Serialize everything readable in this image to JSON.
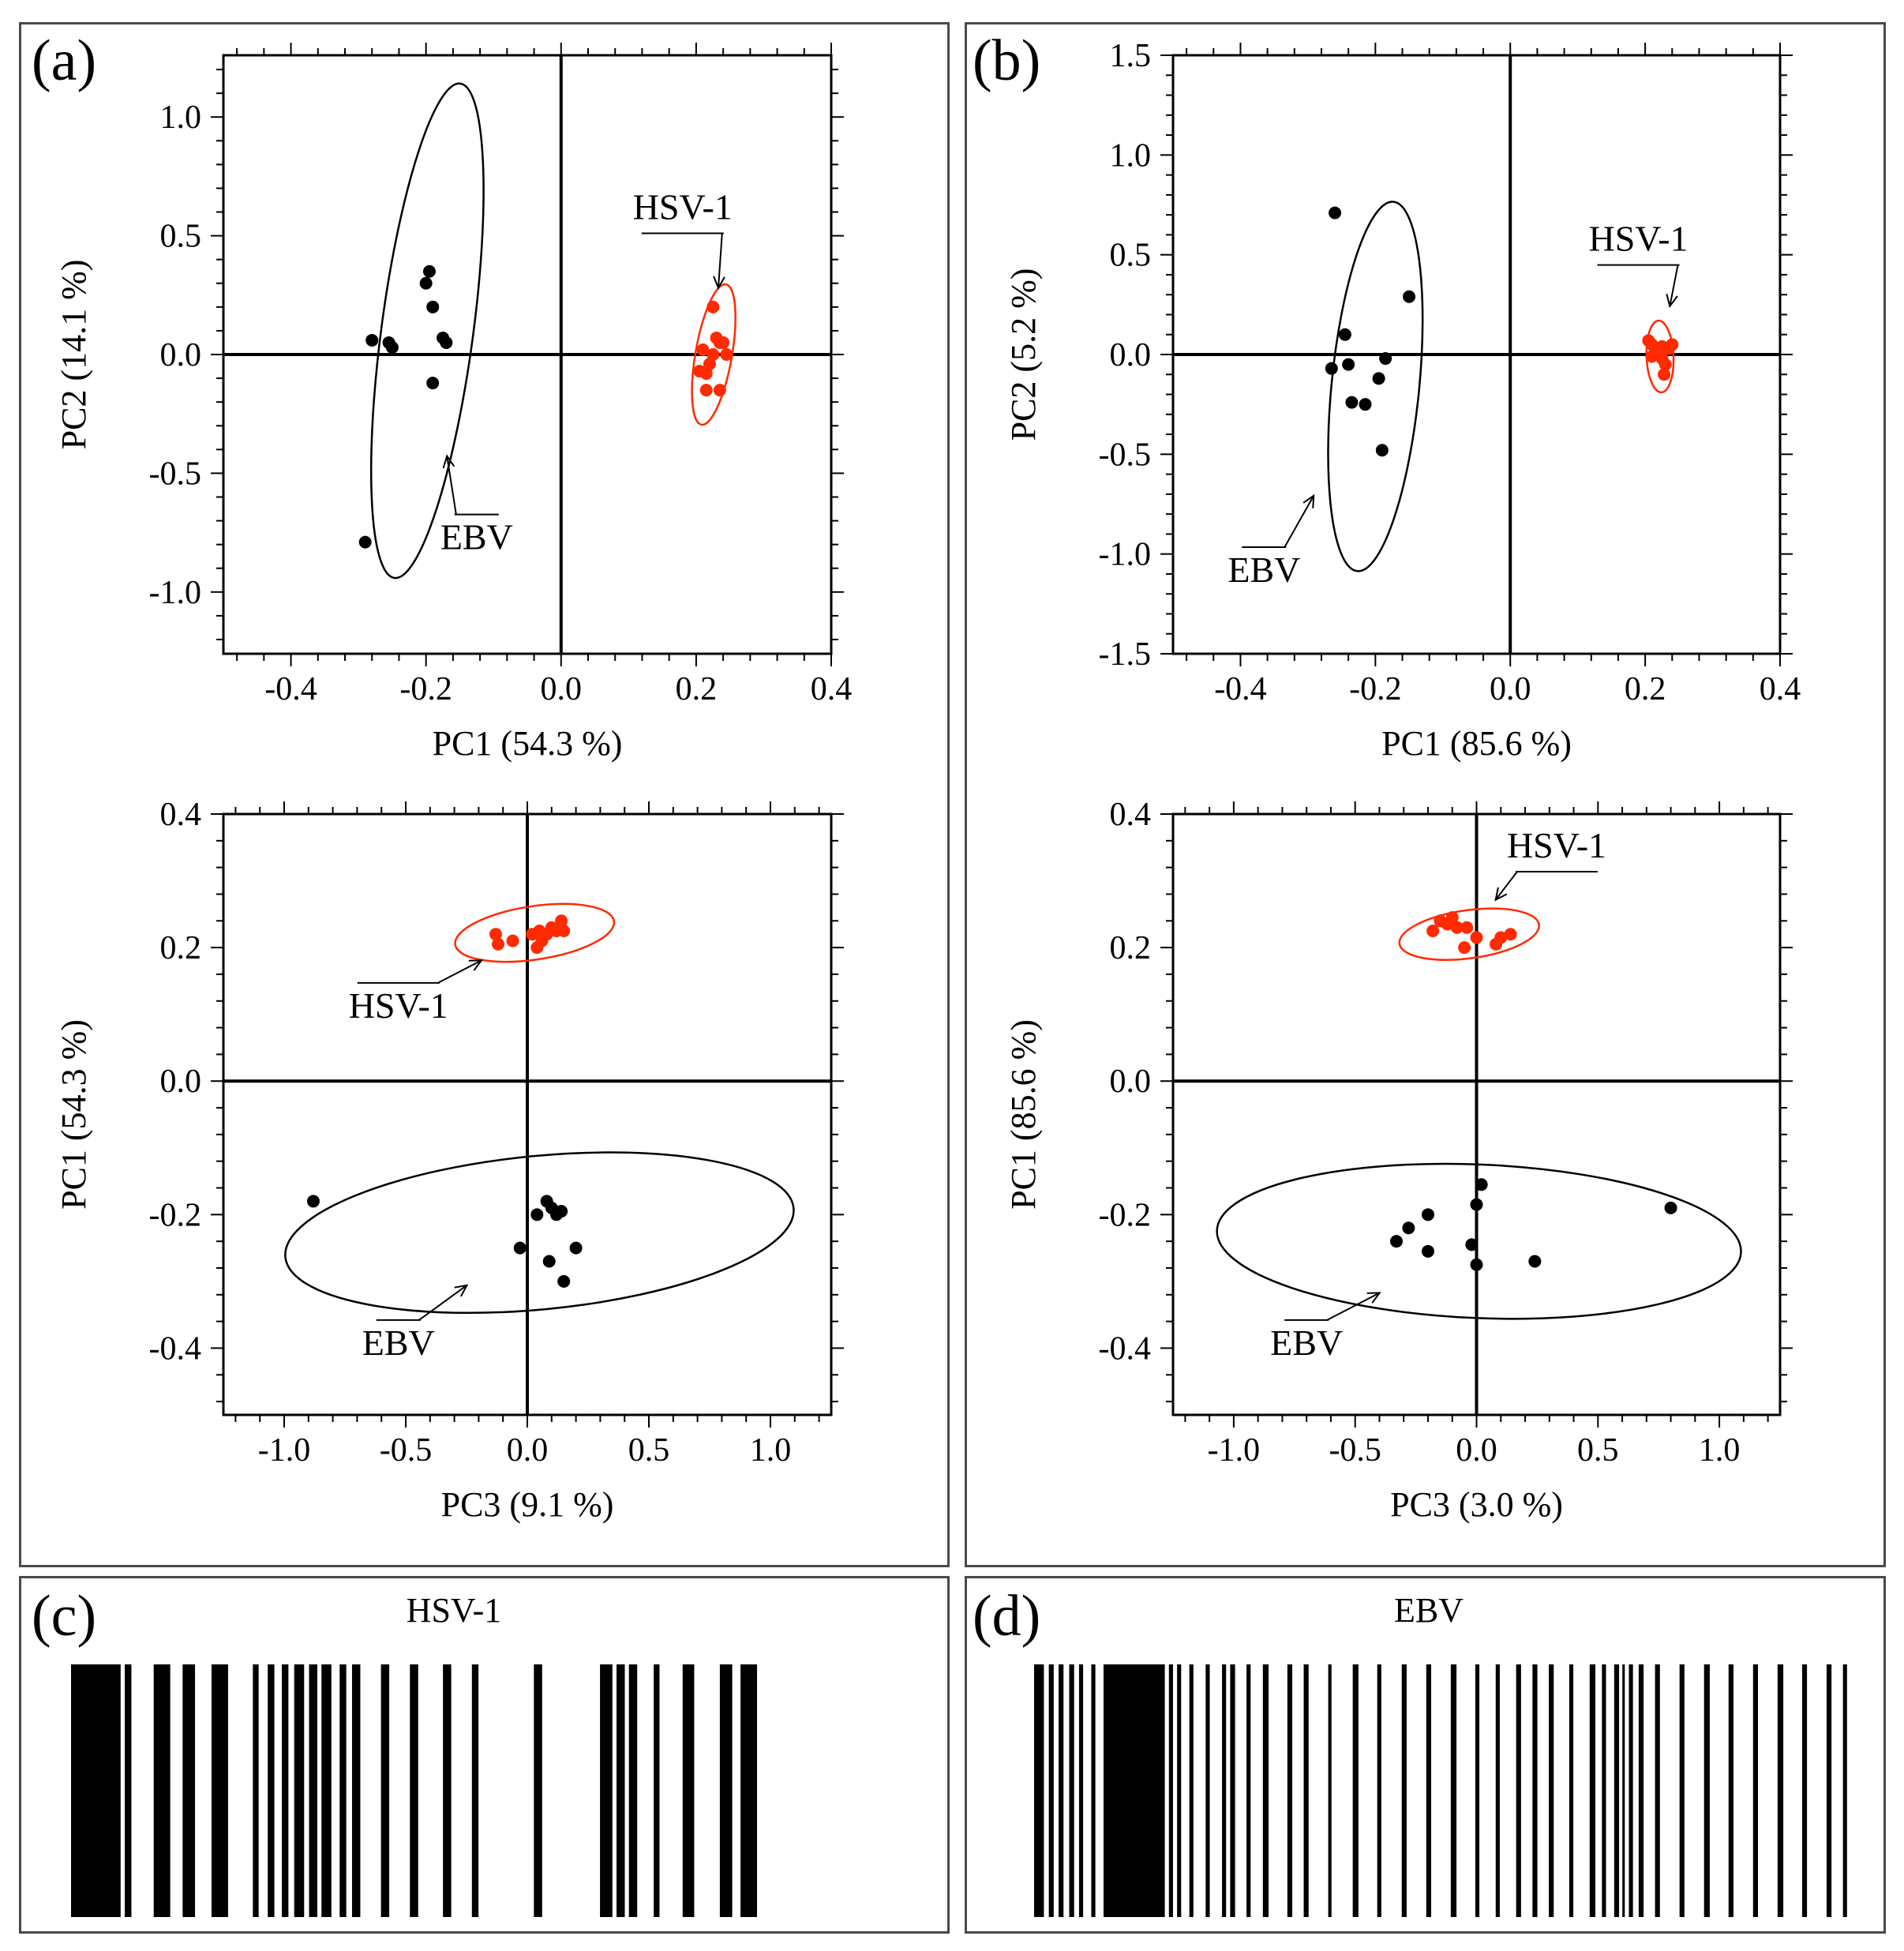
{
  "panels": {
    "a_label": "(a)",
    "b_label": "(b)",
    "c_label": "(c)",
    "d_label": "(d)",
    "c_title": "HSV-1",
    "d_title": "EBV"
  },
  "colors": {
    "hsv": "#ff2a00",
    "ebv": "#000000"
  },
  "chart_data": [
    {
      "id": "a_top",
      "type": "scatter",
      "xlabel": "PC1 (54.3 %)",
      "ylabel": "PC2 (14.1 %)",
      "xlim": [
        -0.5,
        0.4
      ],
      "ylim": [
        -1.26,
        1.26
      ],
      "xticks": [
        -0.4,
        -0.2,
        0.0,
        0.2,
        0.4
      ],
      "xtick_labels": [
        "-0.4",
        "-0.2",
        "0.0",
        "0.2",
        "0.4"
      ],
      "yticks": [
        -1.0,
        -0.5,
        0.0,
        0.5,
        1.0
      ],
      "ytick_labels": [
        "-1.0",
        "-0.5",
        "0.0",
        "0.5",
        "1.0"
      ],
      "series": [
        {
          "name": "EBV",
          "color": "#000000",
          "x": [
            -0.28,
            -0.255,
            -0.25,
            -0.2,
            -0.195,
            -0.19,
            -0.175,
            -0.17,
            -0.19,
            -0.29
          ],
          "y": [
            0.06,
            0.05,
            0.03,
            0.3,
            0.35,
            0.2,
            0.07,
            0.05,
            -0.12,
            -0.79
          ],
          "ellipse": {
            "cx": -0.198,
            "cy": 0.1,
            "rx": 0.068,
            "ry": 1.05,
            "angle": 7.6
          }
        },
        {
          "name": "HSV-1",
          "color": "#ff2a00",
          "x": [
            0.225,
            0.23,
            0.235,
            0.24,
            0.205,
            0.215,
            0.22,
            0.225,
            0.21,
            0.215,
            0.235,
            0.245
          ],
          "y": [
            0.2,
            0.07,
            0.05,
            0.05,
            -0.07,
            -0.08,
            -0.04,
            0.0,
            0.02,
            -0.15,
            -0.15,
            0.0
          ],
          "ellipse": {
            "cx": 0.226,
            "cy": 0.0,
            "rx": 0.027,
            "ry": 0.3,
            "angle": 9.9
          }
        }
      ],
      "annotations": [
        {
          "text": "HSV-1",
          "x": 0.18,
          "y": 0.57
        },
        {
          "text": "EBV",
          "x": -0.125,
          "y": -0.82
        }
      ]
    },
    {
      "id": "b_top",
      "type": "scatter",
      "xlabel": "PC1 (85.6 %)",
      "ylabel": "PC2 (5.2 %)",
      "xlim": [
        -0.5,
        0.4
      ],
      "ylim": [
        -1.5,
        1.5
      ],
      "xticks": [
        -0.4,
        -0.2,
        0.0,
        0.2,
        0.4
      ],
      "xtick_labels": [
        "-0.4",
        "-0.2",
        "0.0",
        "0.2",
        "0.4"
      ],
      "yticks": [
        -1.5,
        -1.0,
        -0.5,
        0.0,
        0.5,
        1.0,
        1.5
      ],
      "ytick_labels": [
        "-1.5",
        "-1.0",
        "-0.5",
        "0.0",
        "0.5",
        "1.0",
        "1.5"
      ],
      "series": [
        {
          "name": "EBV",
          "color": "#000000",
          "x": [
            -0.26,
            -0.245,
            -0.24,
            -0.235,
            -0.215,
            -0.195,
            -0.185,
            -0.265,
            -0.15,
            -0.19
          ],
          "y": [
            0.71,
            0.1,
            -0.05,
            -0.24,
            -0.25,
            -0.12,
            -0.02,
            -0.07,
            0.29,
            -0.48
          ],
          "ellipse": {
            "cx": -0.2,
            "cy": -0.16,
            "rx": 0.065,
            "ry": 0.93,
            "angle": 5.6
          }
        },
        {
          "name": "HSV-1",
          "color": "#ff2a00",
          "x": [
            0.205,
            0.21,
            0.215,
            0.22,
            0.225,
            0.23,
            0.235,
            0.24,
            0.21,
            0.225,
            0.228
          ],
          "y": [
            0.07,
            0.05,
            0.02,
            0.0,
            0.04,
            -0.05,
            0.03,
            0.05,
            -0.01,
            -0.02,
            -0.1
          ],
          "ellipse": {
            "cx": 0.222,
            "cy": -0.01,
            "rx": 0.02,
            "ry": 0.18,
            "angle": -2.4
          }
        }
      ],
      "annotations": [
        {
          "text": "HSV-1",
          "x": 0.19,
          "y": 0.52
        },
        {
          "text": "EBV",
          "x": -0.365,
          "y": -1.14
        }
      ]
    },
    {
      "id": "a_bottom",
      "type": "scatter",
      "xlabel": "PC3 (9.1 %)",
      "ylabel": "PC1 (54.3 %)",
      "xlim": [
        -1.25,
        1.25
      ],
      "ylim": [
        -0.5,
        0.4
      ],
      "xticks": [
        -1.0,
        -0.5,
        0.0,
        0.5,
        1.0
      ],
      "xtick_labels": [
        "-1.0",
        "-0.5",
        "0.0",
        "0.5",
        "1.0"
      ],
      "yticks": [
        -0.4,
        -0.2,
        0.0,
        0.2,
        0.4
      ],
      "ytick_labels": [
        "-0.4",
        "-0.2",
        "0.0",
        "0.2",
        "0.4"
      ],
      "series": [
        {
          "name": "EBV",
          "color": "#000000",
          "x": [
            -0.88,
            0.04,
            0.08,
            0.1,
            0.12,
            0.14,
            -0.03,
            0.2,
            0.09,
            0.15
          ],
          "y": [
            -0.18,
            -0.2,
            -0.18,
            -0.19,
            -0.2,
            -0.195,
            -0.25,
            -0.25,
            -0.27,
            -0.3
          ],
          "ellipse": {
            "cx": 0.05,
            "cy": -0.227,
            "rx": 1.05,
            "ry": 0.115,
            "angle": -5.5
          }
        },
        {
          "name": "HSV-1",
          "color": "#ff2a00",
          "x": [
            -0.13,
            -0.12,
            -0.06,
            0.02,
            0.05,
            0.08,
            0.1,
            0.12,
            0.14,
            0.15,
            0.04,
            0.06
          ],
          "y": [
            0.22,
            0.205,
            0.21,
            0.22,
            0.225,
            0.22,
            0.23,
            0.225,
            0.24,
            0.225,
            0.2,
            0.21
          ],
          "ellipse": {
            "cx": 0.03,
            "cy": 0.222,
            "rx": 0.33,
            "ry": 0.04,
            "angle": -8.4
          }
        }
      ],
      "annotations": [
        {
          "text": "HSV-1",
          "x": -0.53,
          "y": 0.095
        },
        {
          "text": "EBV",
          "x": -0.53,
          "y": -0.41
        }
      ]
    },
    {
      "id": "b_bottom",
      "type": "scatter",
      "xlabel": "PC3 (3.0 %)",
      "ylabel": "PC1 (85.6 %)",
      "xlim": [
        -1.25,
        1.25
      ],
      "ylim": [
        -0.5,
        0.4
      ],
      "xticks": [
        -1.0,
        -0.5,
        0.0,
        0.5,
        1.0
      ],
      "xtick_labels": [
        "-1.0",
        "-0.5",
        "0.0",
        "0.5",
        "1.0"
      ],
      "yticks": [
        -0.4,
        -0.2,
        0.0,
        0.2,
        0.4
      ],
      "ytick_labels": [
        "-0.4",
        "-0.2",
        "0.0",
        "0.2",
        "0.4"
      ],
      "series": [
        {
          "name": "EBV",
          "color": "#000000",
          "x": [
            0.02,
            0.0,
            -0.2,
            -0.28,
            -0.33,
            -0.2,
            -0.02,
            0.0,
            0.24,
            0.8
          ],
          "y": [
            -0.155,
            -0.185,
            -0.2,
            -0.22,
            -0.24,
            -0.255,
            -0.245,
            -0.275,
            -0.27,
            -0.19
          ],
          "ellipse": {
            "cx": 0.01,
            "cy": -0.24,
            "rx": 1.08,
            "ry": 0.115,
            "angle": 2.4
          }
        },
        {
          "name": "HSV-1",
          "color": "#ff2a00",
          "x": [
            -0.18,
            -0.15,
            -0.12,
            -0.08,
            -0.05,
            0.0,
            0.08,
            0.1,
            0.14,
            -0.1,
            -0.04
          ],
          "y": [
            0.225,
            0.24,
            0.235,
            0.23,
            0.2,
            0.215,
            0.205,
            0.215,
            0.22,
            0.245,
            0.23
          ],
          "ellipse": {
            "cx": -0.03,
            "cy": 0.22,
            "rx": 0.29,
            "ry": 0.036,
            "angle": -7.8
          }
        }
      ],
      "annotations": [
        {
          "text": "HSV-1",
          "x": 0.33,
          "y": 0.335
        },
        {
          "text": "EBV",
          "x": -0.7,
          "y": -0.41
        }
      ]
    },
    {
      "id": "c_barcode",
      "type": "barcode",
      "title": "HSV-1",
      "bars": [
        [
          0,
          6
        ],
        [
          6.5,
          7.3
        ],
        [
          10,
          12
        ],
        [
          13.5,
          15
        ],
        [
          17,
          19
        ],
        [
          22,
          22.7
        ],
        [
          23.8,
          24.6
        ],
        [
          25.5,
          26.3
        ],
        [
          27,
          28.2
        ],
        [
          28.8,
          29.8
        ],
        [
          30.3,
          31.5
        ],
        [
          32.5,
          33.3
        ],
        [
          34,
          35
        ],
        [
          37.5,
          38.5
        ],
        [
          41,
          42
        ],
        [
          45,
          46
        ],
        [
          48.5,
          49.3
        ],
        [
          56,
          57
        ],
        [
          64,
          65.5
        ],
        [
          66,
          67
        ],
        [
          67.5,
          68.5
        ],
        [
          70.5,
          71.2
        ],
        [
          74,
          75.4
        ],
        [
          78.5,
          80
        ],
        [
          81,
          83
        ]
      ],
      "xlim": [
        0,
        100
      ]
    },
    {
      "id": "d_barcode",
      "type": "barcode",
      "title": "EBV",
      "bars": [
        [
          0,
          1.2
        ],
        [
          1.8,
          2.4
        ],
        [
          3,
          3.6
        ],
        [
          4.3,
          4.9
        ],
        [
          5.5,
          6
        ],
        [
          7,
          7.5
        ],
        [
          8.5,
          16
        ],
        [
          16.5,
          17
        ],
        [
          17.5,
          18
        ],
        [
          19,
          19.5
        ],
        [
          21,
          21.5
        ],
        [
          23,
          23.5
        ],
        [
          24,
          24.6
        ],
        [
          26,
          26.5
        ],
        [
          28,
          28.7
        ],
        [
          31,
          31.6
        ],
        [
          33,
          33.6
        ],
        [
          36,
          36.4
        ],
        [
          39,
          39.7
        ],
        [
          42,
          42.5
        ],
        [
          45,
          45.6
        ],
        [
          48,
          48.6
        ],
        [
          51,
          51.7
        ],
        [
          54,
          54.5
        ],
        [
          56.5,
          57
        ],
        [
          59,
          59.6
        ],
        [
          61,
          61.6
        ],
        [
          63,
          63.6
        ],
        [
          65.5,
          66
        ],
        [
          68,
          68.7
        ],
        [
          69.5,
          70
        ],
        [
          71,
          71.6
        ],
        [
          72,
          72.3
        ],
        [
          72.8,
          73.3
        ],
        [
          74,
          74.6
        ],
        [
          76,
          76.6
        ],
        [
          79,
          79.6
        ],
        [
          82,
          82.7
        ],
        [
          85,
          85.6
        ],
        [
          88,
          88.6
        ],
        [
          91,
          91.7
        ],
        [
          94,
          94.6
        ],
        [
          97,
          97.6
        ],
        [
          99,
          99.5
        ]
      ],
      "xlim": [
        0,
        100
      ]
    }
  ]
}
